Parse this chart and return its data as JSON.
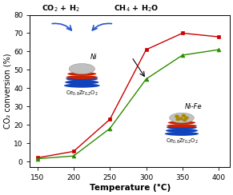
{
  "xlabel": "Temperature (°C)",
  "ylabel": "CO₂ conversion (%)",
  "xlim": [
    140,
    415
  ],
  "ylim": [
    -3,
    80
  ],
  "yticks": [
    0,
    10,
    20,
    30,
    40,
    50,
    60,
    70,
    80
  ],
  "xticks": [
    150,
    200,
    250,
    300,
    350,
    400
  ],
  "red_series": {
    "x": [
      150,
      200,
      250,
      300,
      350,
      400
    ],
    "y": [
      2.0,
      5.5,
      23,
      61,
      70,
      68
    ],
    "color": "#cc0000",
    "marker": "s"
  },
  "green_series": {
    "x": [
      150,
      200,
      250,
      300,
      350,
      400
    ],
    "y": [
      1.5,
      3.0,
      18,
      45,
      58,
      61
    ],
    "color": "#2e8b00",
    "marker": "^"
  },
  "text_co2_h2": "CO$_2$ + H$_2$",
  "text_ch4_h2o": "CH$_4$ + H$_2$O",
  "text_ni": "Ni",
  "text_ni_fe": "Ni-Fe",
  "text_cez1": "Ce$_{0.8}$Zr$_{0.2}$O$_2$",
  "text_cez2": "Ce$_{0.8}$Zr$_{0.2}$O$_2$",
  "background_color": "#ffffff",
  "blue_arrow_color": "#2255cc",
  "atom_gray": "#c0c0c0",
  "atom_red": "#cc2200",
  "atom_blue": "#1144bb",
  "atom_gold": "#aa8800",
  "support_red_color": "#cc2200",
  "support_blue_color": "#1144bb"
}
